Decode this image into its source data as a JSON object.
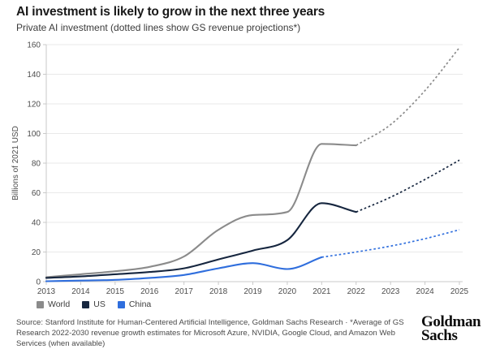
{
  "header": {
    "title": "AI investment is likely to grow in the next three years",
    "subtitle": "Private AI investment (dotted lines show GS revenue projections*)"
  },
  "chart_data": {
    "type": "line",
    "title": "AI investment is likely to grow in the next three years",
    "subtitle": "Private AI investment (dotted lines show GS revenue projections*)",
    "xlabel": "",
    "ylabel": "Billions of 2021 USD",
    "x": [
      2013,
      2014,
      2015,
      2016,
      2017,
      2018,
      2019,
      2020,
      2021,
      2022,
      2023,
      2024,
      2025
    ],
    "ylim": [
      0,
      160
    ],
    "ytick_step": 20,
    "grid": true,
    "legend_position": "bottom-left",
    "series": [
      {
        "name": "World",
        "color": "#8b8b8b",
        "solid_x": [
          2013,
          2014,
          2015,
          2016,
          2017,
          2018,
          2019,
          2020,
          2021,
          2022
        ],
        "solid_y": [
          3,
          5,
          7,
          10,
          17,
          35,
          45,
          47,
          93,
          92
        ],
        "dotted_x": [
          2022,
          2023,
          2024,
          2025
        ],
        "dotted_y": [
          92,
          106,
          129,
          158
        ]
      },
      {
        "name": "US",
        "color": "#16263f",
        "solid_x": [
          2013,
          2014,
          2015,
          2016,
          2017,
          2018,
          2019,
          2020,
          2021,
          2022
        ],
        "solid_y": [
          2.5,
          3.5,
          5,
          6.5,
          9,
          15,
          21,
          28,
          53,
          47
        ],
        "dotted_x": [
          2022,
          2023,
          2024,
          2025
        ],
        "dotted_y": [
          47,
          57,
          69,
          82
        ]
      },
      {
        "name": "China",
        "color": "#2f6edd",
        "solid_x": [
          2013,
          2014,
          2015,
          2016,
          2017,
          2018,
          2019,
          2020,
          2021
        ],
        "solid_y": [
          0.3,
          0.7,
          1.2,
          2.5,
          4.5,
          9,
          12.5,
          8.5,
          16.5
        ],
        "dotted_x": [
          2021,
          2022,
          2023,
          2024,
          2025
        ],
        "dotted_y": [
          16.5,
          20,
          24,
          29,
          35
        ]
      }
    ]
  },
  "colors": {
    "grid": "#e9e9e9",
    "axis": "#c9c9c9",
    "tick_text": "#4d4d4d"
  },
  "footer": {
    "source": "Source: Stanford Institute for Human-Centered Artificial Intelligence, Goldman Sachs Research · *Average of GS Research 2022-2030 revenue growth estimates for Microsoft Azure, NVIDIA, Google Cloud, and Amazon Web Services (when available)",
    "logo_line1": "Goldman",
    "logo_line2": "Sachs"
  }
}
